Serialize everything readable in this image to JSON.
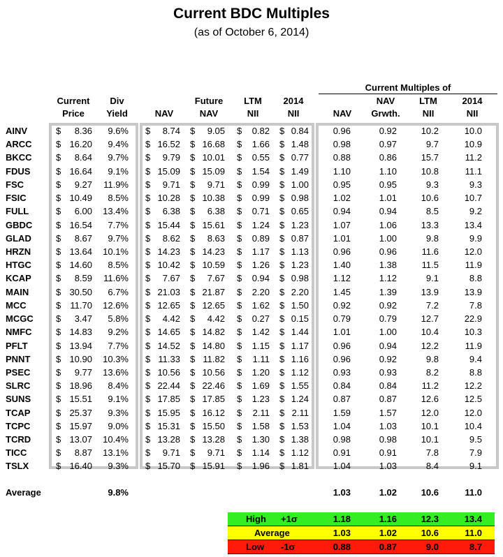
{
  "title": "Current BDC Multiples",
  "subtitle": "(as of October 6, 2014)",
  "group_header": "Current Multiples of",
  "headers": {
    "price": [
      "Current",
      "Price"
    ],
    "yield": [
      "Div",
      "Yield"
    ],
    "nav": [
      "",
      "NAV"
    ],
    "future_nav": [
      "Future",
      "NAV"
    ],
    "ltm_nii": [
      "LTM",
      "NII"
    ],
    "nii_2014": [
      "2014",
      "NII"
    ],
    "m_nav": [
      "",
      "NAV"
    ],
    "m_navg": [
      "NAV",
      "Grwth."
    ],
    "m_ltm": [
      "LTM",
      "NII"
    ],
    "m_2014": [
      "2014",
      "NII"
    ]
  },
  "rows": [
    {
      "ticker": "AINV",
      "price": "8.36",
      "yield": "9.6%",
      "nav": "8.74",
      "fnav": "9.05",
      "ltm": "0.82",
      "nii14": "0.84",
      "m_nav": "0.96",
      "m_navg": "0.92",
      "m_ltm": "10.2",
      "m_2014": "10.0"
    },
    {
      "ticker": "ARCC",
      "price": "16.20",
      "yield": "9.4%",
      "nav": "16.52",
      "fnav": "16.68",
      "ltm": "1.66",
      "nii14": "1.48",
      "m_nav": "0.98",
      "m_navg": "0.97",
      "m_ltm": "9.7",
      "m_2014": "10.9"
    },
    {
      "ticker": "BKCC",
      "price": "8.64",
      "yield": "9.7%",
      "nav": "9.79",
      "fnav": "10.01",
      "ltm": "0.55",
      "nii14": "0.77",
      "m_nav": "0.88",
      "m_navg": "0.86",
      "m_ltm": "15.7",
      "m_2014": "11.2"
    },
    {
      "ticker": "FDUS",
      "price": "16.64",
      "yield": "9.1%",
      "nav": "15.09",
      "fnav": "15.09",
      "ltm": "1.54",
      "nii14": "1.49",
      "m_nav": "1.10",
      "m_navg": "1.10",
      "m_ltm": "10.8",
      "m_2014": "11.1"
    },
    {
      "ticker": "FSC",
      "price": "9.27",
      "yield": "11.9%",
      "nav": "9.71",
      "fnav": "9.71",
      "ltm": "0.99",
      "nii14": "1.00",
      "m_nav": "0.95",
      "m_navg": "0.95",
      "m_ltm": "9.3",
      "m_2014": "9.3"
    },
    {
      "ticker": "FSIC",
      "price": "10.49",
      "yield": "8.5%",
      "nav": "10.28",
      "fnav": "10.38",
      "ltm": "0.99",
      "nii14": "0.98",
      "m_nav": "1.02",
      "m_navg": "1.01",
      "m_ltm": "10.6",
      "m_2014": "10.7"
    },
    {
      "ticker": "FULL",
      "price": "6.00",
      "yield": "13.4%",
      "nav": "6.38",
      "fnav": "6.38",
      "ltm": "0.71",
      "nii14": "0.65",
      "m_nav": "0.94",
      "m_navg": "0.94",
      "m_ltm": "8.5",
      "m_2014": "9.2"
    },
    {
      "ticker": "GBDC",
      "price": "16.54",
      "yield": "7.7%",
      "nav": "15.44",
      "fnav": "15.61",
      "ltm": "1.24",
      "nii14": "1.23",
      "m_nav": "1.07",
      "m_navg": "1.06",
      "m_ltm": "13.3",
      "m_2014": "13.4"
    },
    {
      "ticker": "GLAD",
      "price": "8.67",
      "yield": "9.7%",
      "nav": "8.62",
      "fnav": "8.63",
      "ltm": "0.89",
      "nii14": "0.87",
      "m_nav": "1.01",
      "m_navg": "1.00",
      "m_ltm": "9.8",
      "m_2014": "9.9"
    },
    {
      "ticker": "HRZN",
      "price": "13.64",
      "yield": "10.1%",
      "nav": "14.23",
      "fnav": "14.23",
      "ltm": "1.17",
      "nii14": "1.13",
      "m_nav": "0.96",
      "m_navg": "0.96",
      "m_ltm": "11.6",
      "m_2014": "12.0"
    },
    {
      "ticker": "HTGC",
      "price": "14.60",
      "yield": "8.5%",
      "nav": "10.42",
      "fnav": "10.59",
      "ltm": "1.26",
      "nii14": "1.23",
      "m_nav": "1.40",
      "m_navg": "1.38",
      "m_ltm": "11.5",
      "m_2014": "11.9"
    },
    {
      "ticker": "KCAP",
      "price": "8.59",
      "yield": "11.6%",
      "nav": "7.67",
      "fnav": "7.67",
      "ltm": "0.94",
      "nii14": "0.98",
      "m_nav": "1.12",
      "m_navg": "1.12",
      "m_ltm": "9.1",
      "m_2014": "8.8"
    },
    {
      "ticker": "MAIN",
      "price": "30.50",
      "yield": "6.7%",
      "nav": "21.03",
      "fnav": "21.87",
      "ltm": "2.20",
      "nii14": "2.20",
      "m_nav": "1.45",
      "m_navg": "1.39",
      "m_ltm": "13.9",
      "m_2014": "13.9"
    },
    {
      "ticker": "MCC",
      "price": "11.70",
      "yield": "12.6%",
      "nav": "12.65",
      "fnav": "12.65",
      "ltm": "1.62",
      "nii14": "1.50",
      "m_nav": "0.92",
      "m_navg": "0.92",
      "m_ltm": "7.2",
      "m_2014": "7.8"
    },
    {
      "ticker": "MCGC",
      "price": "3.47",
      "yield": "5.8%",
      "nav": "4.42",
      "fnav": "4.42",
      "ltm": "0.27",
      "nii14": "0.15",
      "m_nav": "0.79",
      "m_navg": "0.79",
      "m_ltm": "12.7",
      "m_2014": "22.9"
    },
    {
      "ticker": "NMFC",
      "price": "14.83",
      "yield": "9.2%",
      "nav": "14.65",
      "fnav": "14.82",
      "ltm": "1.42",
      "nii14": "1.44",
      "m_nav": "1.01",
      "m_navg": "1.00",
      "m_ltm": "10.4",
      "m_2014": "10.3"
    },
    {
      "ticker": "PFLT",
      "price": "13.94",
      "yield": "7.7%",
      "nav": "14.52",
      "fnav": "14.80",
      "ltm": "1.15",
      "nii14": "1.17",
      "m_nav": "0.96",
      "m_navg": "0.94",
      "m_ltm": "12.2",
      "m_2014": "11.9"
    },
    {
      "ticker": "PNNT",
      "price": "10.90",
      "yield": "10.3%",
      "nav": "11.33",
      "fnav": "11.82",
      "ltm": "1.11",
      "nii14": "1.16",
      "m_nav": "0.96",
      "m_navg": "0.92",
      "m_ltm": "9.8",
      "m_2014": "9.4"
    },
    {
      "ticker": "PSEC",
      "price": "9.77",
      "yield": "13.6%",
      "nav": "10.56",
      "fnav": "10.56",
      "ltm": "1.20",
      "nii14": "1.12",
      "m_nav": "0.93",
      "m_navg": "0.93",
      "m_ltm": "8.2",
      "m_2014": "8.8"
    },
    {
      "ticker": "SLRC",
      "price": "18.96",
      "yield": "8.4%",
      "nav": "22.44",
      "fnav": "22.46",
      "ltm": "1.69",
      "nii14": "1.55",
      "m_nav": "0.84",
      "m_navg": "0.84",
      "m_ltm": "11.2",
      "m_2014": "12.2"
    },
    {
      "ticker": "SUNS",
      "price": "15.51",
      "yield": "9.1%",
      "nav": "17.85",
      "fnav": "17.85",
      "ltm": "1.23",
      "nii14": "1.24",
      "m_nav": "0.87",
      "m_navg": "0.87",
      "m_ltm": "12.6",
      "m_2014": "12.5"
    },
    {
      "ticker": "TCAP",
      "price": "25.37",
      "yield": "9.3%",
      "nav": "15.95",
      "fnav": "16.12",
      "ltm": "2.11",
      "nii14": "2.11",
      "m_nav": "1.59",
      "m_navg": "1.57",
      "m_ltm": "12.0",
      "m_2014": "12.0"
    },
    {
      "ticker": "TCPC",
      "price": "15.97",
      "yield": "9.0%",
      "nav": "15.31",
      "fnav": "15.50",
      "ltm": "1.58",
      "nii14": "1.53",
      "m_nav": "1.04",
      "m_navg": "1.03",
      "m_ltm": "10.1",
      "m_2014": "10.4"
    },
    {
      "ticker": "TCRD",
      "price": "13.07",
      "yield": "10.4%",
      "nav": "13.28",
      "fnav": "13.28",
      "ltm": "1.30",
      "nii14": "1.38",
      "m_nav": "0.98",
      "m_navg": "0.98",
      "m_ltm": "10.1",
      "m_2014": "9.5"
    },
    {
      "ticker": "TICC",
      "price": "8.87",
      "yield": "13.1%",
      "nav": "9.71",
      "fnav": "9.71",
      "ltm": "1.14",
      "nii14": "1.12",
      "m_nav": "0.91",
      "m_navg": "0.91",
      "m_ltm": "7.8",
      "m_2014": "7.9"
    },
    {
      "ticker": "TSLX",
      "price": "16.40",
      "yield": "9.3%",
      "nav": "15.70",
      "fnav": "15.91",
      "ltm": "1.96",
      "nii14": "1.81",
      "m_nav": "1.04",
      "m_navg": "1.03",
      "m_ltm": "8.4",
      "m_2014": "9.1"
    }
  ],
  "average": {
    "label": "Average",
    "yield": "9.8%",
    "m_nav": "1.03",
    "m_navg": "1.02",
    "m_ltm": "10.6",
    "m_2014": "11.0"
  },
  "legend": [
    {
      "label": "High",
      "sigma": "+1σ",
      "bg": "#33ee22",
      "m_nav": "1.18",
      "m_navg": "1.16",
      "m_ltm": "12.3",
      "m_2014": "13.4"
    },
    {
      "label": "Average",
      "sigma": "",
      "bg": "#ffff00",
      "m_nav": "1.03",
      "m_navg": "1.02",
      "m_ltm": "10.6",
      "m_2014": "11.0"
    },
    {
      "label": "Low",
      "sigma": "-1σ",
      "bg": "#ff1a0a",
      "m_nav": "0.88",
      "m_navg": "0.87",
      "m_ltm": "9.0",
      "m_2014": "8.7"
    }
  ],
  "currency_symbol": "$"
}
